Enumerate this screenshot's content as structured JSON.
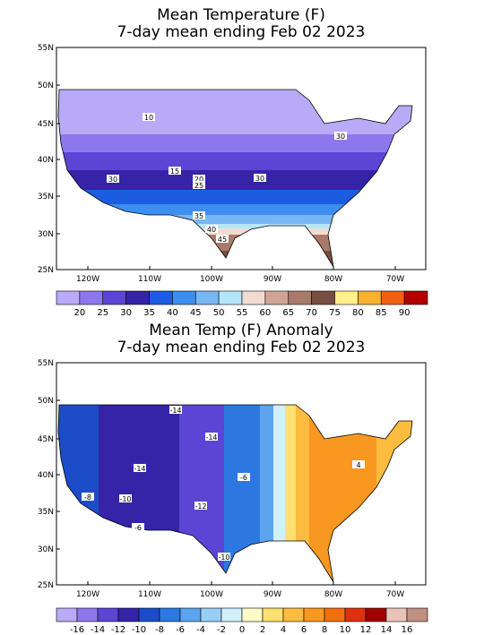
{
  "panels": [
    {
      "title": "Mean Temperature (F)",
      "subtitle": "7-day mean ending Feb 02 2023",
      "lat_labels": [
        "55N",
        "50N",
        "45N",
        "40N",
        "35N",
        "30N",
        "25N"
      ],
      "lon_labels": [
        "120W",
        "110W",
        "100W",
        "90W",
        "80W",
        "70W"
      ],
      "colorbar": {
        "labels": [
          20,
          25,
          30,
          35,
          40,
          45,
          50,
          55,
          60,
          65,
          70,
          75,
          80,
          85,
          90
        ],
        "colors": [
          "#b8aaf6",
          "#8c78ec",
          "#5c44d4",
          "#3524a8",
          "#1c5ce0",
          "#3c8ef0",
          "#78b6f4",
          "#b4e6f8",
          "#f2dcd2",
          "#d0a494",
          "#a87a6a",
          "#784e42",
          "#fff08c",
          "#f8b030",
          "#f06010",
          "#b00000"
        ]
      },
      "contour_labels": [
        10,
        15,
        20,
        25,
        30,
        30,
        30,
        35,
        40,
        45
      ]
    },
    {
      "title": "Mean Temp (F) Anomaly",
      "subtitle": "7-day mean ending Feb 02 2023",
      "lat_labels": [
        "55N",
        "50N",
        "45N",
        "40N",
        "35N",
        "30N",
        "25N"
      ],
      "lon_labels": [
        "120W",
        "110W",
        "100W",
        "90W",
        "80W",
        "70W"
      ],
      "colorbar": {
        "labels": [
          -16,
          -14,
          -12,
          -10,
          -8,
          -6,
          -4,
          -2,
          0,
          2,
          4,
          6,
          8,
          10,
          12,
          14,
          16
        ],
        "colors": [
          "#b8aaf6",
          "#8c78ec",
          "#5c44d4",
          "#3524a8",
          "#1c4cc8",
          "#2c78e0",
          "#5ca4ee",
          "#98cef6",
          "#d2f0fa",
          "#fffac8",
          "#ffe070",
          "#fcbc40",
          "#f89820",
          "#f07010",
          "#e03010",
          "#a00000",
          "#e8c4b8",
          "#c09080"
        ]
      },
      "contour_labels": [
        -14,
        -14,
        -14,
        -6,
        -8,
        -10,
        -6,
        -12,
        -10,
        4
      ]
    }
  ]
}
